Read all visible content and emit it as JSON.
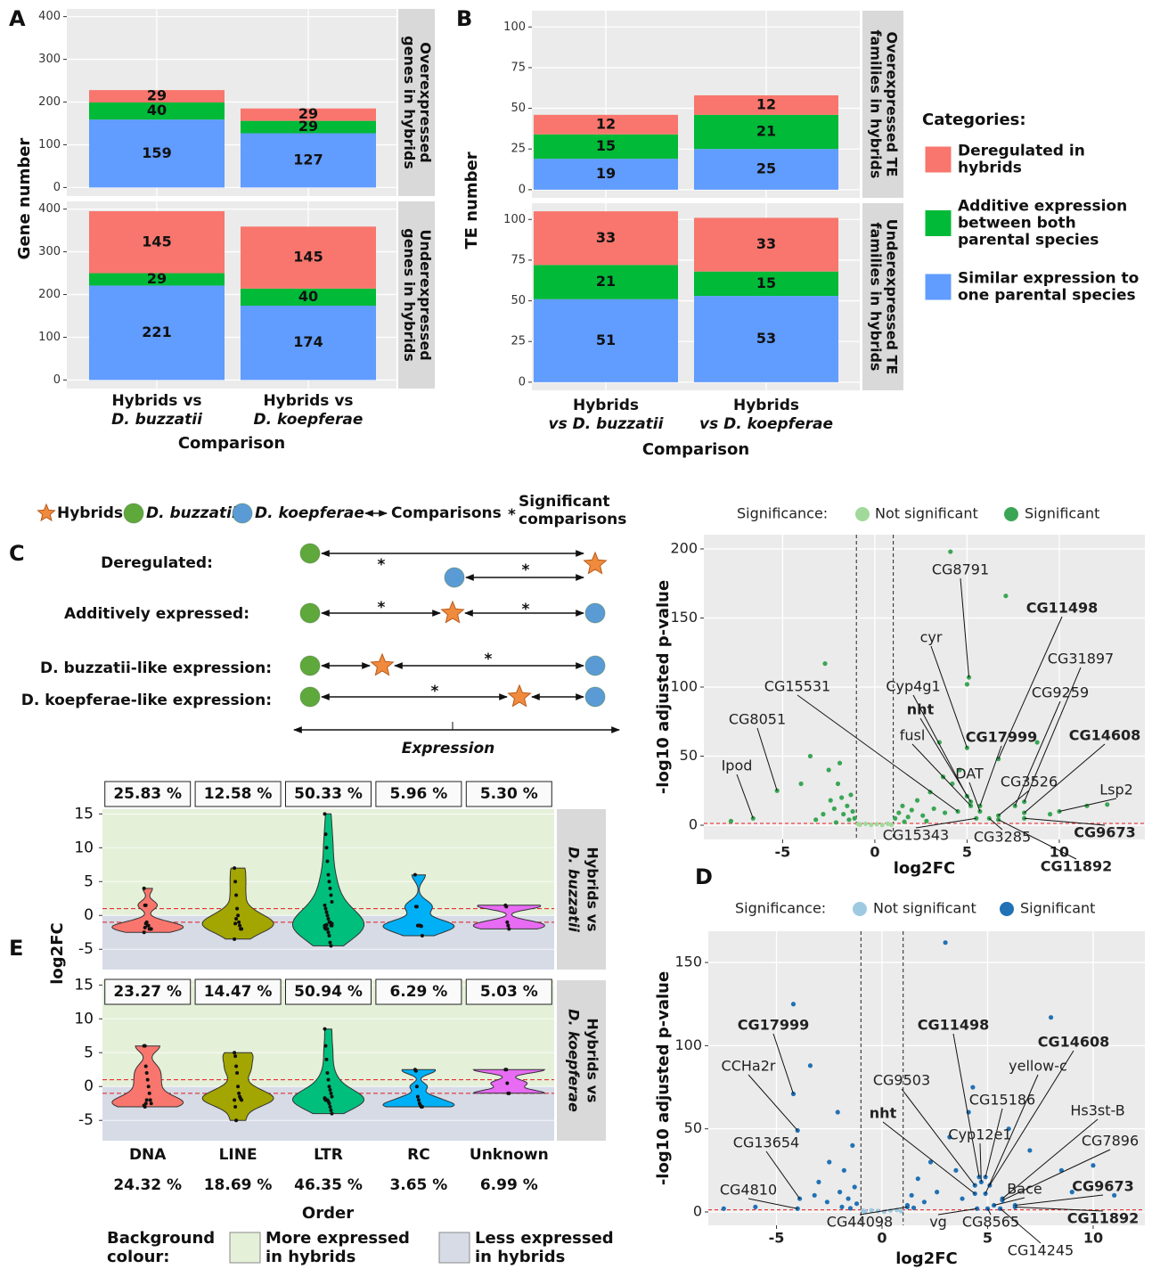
{
  "panel_labels": [
    "A",
    "B",
    "C",
    "D",
    "E"
  ],
  "chart_data": [
    {
      "type": "bar",
      "stacked": true,
      "grid": true,
      "x_label": "Comparison",
      "y_label": "Gene number",
      "categories": [
        [
          "Hybrids vs",
          "D. buzzatii"
        ],
        [
          "Hybrids vs",
          "D. koepferae"
        ]
      ],
      "ylim": [
        -20,
        418
      ],
      "yticks": [
        0,
        100,
        200,
        300,
        400
      ],
      "facets": [
        {
          "label": [
            "Overexpressed",
            "genes in hybrids"
          ],
          "series": [
            {
              "color": "#619cff",
              "values": [
                159,
                127
              ]
            },
            {
              "color": "#00ba38",
              "values": [
                40,
                29
              ]
            },
            {
              "color": "#f8766d",
              "values": [
                29,
                29
              ]
            }
          ]
        },
        {
          "label": [
            "Underexpressed",
            "genes in hybrids"
          ],
          "series": [
            {
              "color": "#619cff",
              "values": [
                221,
                174
              ]
            },
            {
              "color": "#00ba38",
              "values": [
                29,
                40
              ]
            },
            {
              "color": "#f8766d",
              "values": [
                145,
                145
              ]
            }
          ]
        }
      ]
    },
    {
      "type": "bar",
      "stacked": true,
      "grid": true,
      "x_label": "Comparison",
      "y_label": "TE number",
      "categories": [
        [
          "Hybrids",
          "vs D. buzzatii"
        ],
        [
          "Hybrids",
          "vs D. koepferae"
        ]
      ],
      "ylim": [
        -5,
        110
      ],
      "yticks": [
        0,
        25,
        50,
        75,
        100
      ],
      "legend_title": "Categories:",
      "facets": [
        {
          "label": [
            "Overexpressed TE",
            "families in hybrids"
          ],
          "series": [
            {
              "name": [
                "Similar expression to",
                "one parental species"
              ],
              "color": "#619cff",
              "values": [
                19,
                25
              ]
            },
            {
              "name": [
                "Additive expression",
                "between both",
                "parental species"
              ],
              "color": "#00ba38",
              "values": [
                15,
                21
              ]
            },
            {
              "name": [
                "Deregulated in",
                "hybrids"
              ],
              "color": "#f8766d",
              "values": [
                12,
                12
              ]
            }
          ]
        },
        {
          "label": [
            "Underexpressed TE",
            "families in hybrids"
          ],
          "series": [
            {
              "color": "#619cff",
              "values": [
                51,
                53
              ]
            },
            {
              "color": "#00ba38",
              "values": [
                21,
                15
              ]
            },
            {
              "color": "#f8766d",
              "values": [
                33,
                33
              ]
            }
          ]
        }
      ]
    },
    {
      "type": "scatter",
      "grid": true,
      "x_label": "log2FC",
      "y_label": "-log10 adjusted p-value",
      "legend_title": "Significance:",
      "xlim": [
        -9.27,
        14.64
      ],
      "ylim": [
        -10.3,
        210.3
      ],
      "xticks": [
        -5,
        0,
        5,
        10
      ],
      "yticks": [
        0,
        50,
        100,
        150,
        200
      ],
      "vlines": [
        -1,
        1
      ],
      "hline": 1.3,
      "series": [
        {
          "name": "Not significant",
          "color": "#a1d99b",
          "x": [
            -0.8,
            -0.5,
            -0.2,
            0.1,
            0.4,
            0.7,
            0.9,
            -0.9
          ],
          "y": [
            0.5,
            1,
            0.3,
            0.8,
            0.2,
            1.1,
            0.4,
            0.9
          ]
        },
        {
          "name": "Significant",
          "color": "#3aa655",
          "x": [
            -7.8,
            -6.6,
            -5.3,
            -4,
            -3.5,
            -2.7,
            -2.5,
            -2.2,
            -2,
            -1.8,
            -1.7,
            -1.5,
            -1.4,
            -1.3,
            -1.2,
            -1.1,
            -2.8,
            -3.2,
            -2.4,
            -1.9,
            1.1,
            1.3,
            1.5,
            1.8,
            2,
            2.3,
            2.6,
            3,
            3.2,
            3.5,
            3.8,
            4.1,
            4.2,
            4.5,
            5,
            5.1,
            5,
            5,
            5.2,
            5.2,
            5.5,
            5.7,
            5.7,
            6.2,
            6.7,
            6.7,
            6.7,
            7.1,
            7.6,
            8.1,
            8.1,
            8.1,
            8.8,
            9.5,
            10,
            11.5,
            12.6,
            4.6,
            3.7,
            2.8,
            1.6,
            -2.1
          ],
          "y": [
            3,
            5,
            25,
            30,
            50,
            117,
            40,
            12,
            30,
            20,
            8,
            14,
            4,
            22,
            10,
            5,
            8,
            4,
            18,
            45,
            5,
            9,
            14,
            6,
            11,
            18,
            7,
            24,
            12,
            60,
            9,
            198,
            30,
            10,
            102,
            107,
            56,
            21,
            17,
            14,
            5,
            14,
            10,
            5,
            48,
            7,
            4,
            166,
            14,
            17,
            9,
            5,
            60,
            8,
            10,
            14,
            15,
            40,
            35,
            3,
            2.5,
            2
          ]
        }
      ],
      "labels": [
        {
          "text": "Ipod",
          "x": -6.6,
          "y": 5,
          "bold": false
        },
        {
          "text": "CG8051",
          "x": -5.3,
          "y": 25,
          "bold": false
        },
        {
          "text": "CG15531",
          "x": 4.5,
          "y": 10,
          "bold": false
        },
        {
          "text": "CG8791",
          "x": 5.1,
          "y": 107,
          "bold": false
        },
        {
          "text": "cyr",
          "x": 5,
          "y": 56,
          "bold": false
        },
        {
          "text": "CG11498",
          "x": 6.7,
          "y": 48,
          "bold": true
        },
        {
          "text": "CG31897",
          "x": 8.1,
          "y": 17,
          "bold": false
        },
        {
          "text": "Cyp4g1",
          "x": 5,
          "y": 21,
          "bold": false
        },
        {
          "text": "CG9259",
          "x": 7.6,
          "y": 14,
          "bold": false
        },
        {
          "text": "nht",
          "x": 5.2,
          "y": 17,
          "bold": true
        },
        {
          "text": "fusl",
          "x": 5.2,
          "y": 14,
          "bold": false
        },
        {
          "text": "CG17999",
          "x": 5.7,
          "y": 14,
          "bold": true
        },
        {
          "text": "CG14608",
          "x": 8.1,
          "y": 9,
          "bold": true
        },
        {
          "text": "DAT",
          "x": 5.7,
          "y": 10,
          "bold": false
        },
        {
          "text": "CG3526",
          "x": 6.7,
          "y": 7,
          "bold": false
        },
        {
          "text": "Lsp2",
          "x": 10,
          "y": 10,
          "bold": false
        },
        {
          "text": "CG15343",
          "x": 5.5,
          "y": 5,
          "bold": false
        },
        {
          "text": "CG3285",
          "x": 6.2,
          "y": 5,
          "bold": false
        },
        {
          "text": "CG9673",
          "x": 8.1,
          "y": 5,
          "bold": true
        },
        {
          "text": "CG11892",
          "x": 6.7,
          "y": 4,
          "bold": true
        }
      ]
    },
    {
      "type": "scatter",
      "grid": true,
      "x_label": "log2FC",
      "y_label": "-log10 adjusted p-value",
      "legend_title": "Significance:",
      "xlim": [
        -8.23,
        12.45
      ],
      "ylim": [
        -8.04,
        168.8
      ],
      "xticks": [
        -5,
        0,
        5,
        10
      ],
      "yticks": [
        0,
        50,
        100,
        150
      ],
      "vlines": [
        -1,
        1
      ],
      "hline": 1.3,
      "series": [
        {
          "name": "Not significant",
          "color": "#9ecae1",
          "x": [
            -0.8,
            -0.5,
            -0.2,
            0.1,
            0.4,
            0.7,
            0.9,
            -0.9
          ],
          "y": [
            0.4,
            1,
            0.6,
            0.2,
            0.9,
            1.2,
            0.5,
            0.8
          ]
        },
        {
          "name": "Significant",
          "color": "#2171b5",
          "x": [
            -7.5,
            -6,
            -4.2,
            -4,
            -4.2,
            -3.4,
            -3.9,
            -4,
            -3,
            -2.5,
            -2.1,
            -2,
            -1.8,
            -1.6,
            -1.4,
            -1.3,
            -1.2,
            -2.6,
            -3.2,
            -1.9,
            1.2,
            1.4,
            1.7,
            2,
            2.3,
            2.6,
            3,
            3.2,
            3.5,
            3.8,
            4.1,
            4.3,
            4.4,
            4.4,
            4.5,
            4.6,
            4.9,
            4.9,
            5,
            5.1,
            5.3,
            5.6,
            5.7,
            5.7,
            6.3,
            6.3,
            7,
            8,
            8.5,
            9,
            10,
            11,
            6,
            1.5,
            -1.5,
            1.2,
            4.7
          ],
          "y": [
            2,
            3,
            71,
            49,
            125,
            88,
            8,
            2,
            18,
            30,
            60,
            12,
            25,
            8,
            40,
            15,
            5,
            6,
            10,
            3,
            4,
            10,
            20,
            6,
            30,
            12,
            162,
            45,
            25,
            8,
            60,
            75,
            16,
            11,
            2,
            21,
            11,
            21,
            2,
            16,
            4,
            2,
            7,
            8,
            3,
            4,
            37,
            117,
            25,
            12,
            28,
            10,
            50,
            2.5,
            2.2,
            3,
            18
          ]
        }
      ],
      "labels": [
        {
          "text": "CG17999",
          "x": -4.2,
          "y": 71,
          "bold": true
        },
        {
          "text": "CCHa2r",
          "x": -4,
          "y": 49,
          "bold": false
        },
        {
          "text": "CG13654",
          "x": -3.9,
          "y": 8,
          "bold": false
        },
        {
          "text": "CG4810",
          "x": -4,
          "y": 2,
          "bold": false
        },
        {
          "text": "CG44098",
          "x": 1.2,
          "y": 3,
          "bold": false
        },
        {
          "text": "vg",
          "x": 4.5,
          "y": 2,
          "bold": false
        },
        {
          "text": "CG8565",
          "x": 5,
          "y": 2,
          "bold": false
        },
        {
          "text": "CG14245",
          "x": 5.6,
          "y": 2,
          "bold": false
        },
        {
          "text": "CG11892",
          "x": 6.3,
          "y": 3,
          "bold": true
        },
        {
          "text": "CG9673",
          "x": 6.3,
          "y": 4,
          "bold": true
        },
        {
          "text": "Bace",
          "x": 5.3,
          "y": 4,
          "bold": false
        },
        {
          "text": "CG7896",
          "x": 5.7,
          "y": 7,
          "bold": false
        },
        {
          "text": "Hs3st-B",
          "x": 5.7,
          "y": 8,
          "bold": false
        },
        {
          "text": "yellow-c",
          "x": 4.9,
          "y": 11,
          "bold": false
        },
        {
          "text": "CG14608",
          "x": 5.1,
          "y": 16,
          "bold": true
        },
        {
          "text": "CG11498",
          "x": 4.6,
          "y": 21,
          "bold": true
        },
        {
          "text": "CG15186",
          "x": 4.9,
          "y": 21,
          "bold": false
        },
        {
          "text": "Cyp12e1",
          "x": 4.7,
          "y": 18,
          "bold": false
        },
        {
          "text": "CG9503",
          "x": 4.4,
          "y": 16,
          "bold": false
        },
        {
          "text": "nht",
          "x": 4.4,
          "y": 11,
          "bold": true
        }
      ]
    },
    {
      "type": "violin",
      "grid": true,
      "x_label": "Order",
      "y_label": "log2FC",
      "categories": [
        "DNA",
        "LINE",
        "LTR",
        "RC",
        "Unknown"
      ],
      "category_percentages": [
        "24.32 %",
        "18.69 %",
        "46.35 %",
        "3.65 %",
        "6.99 %"
      ],
      "colors": [
        "#f8766d",
        "#a3a500",
        "#00bf7d",
        "#00b0f6",
        "#e76bf3"
      ],
      "ylim": [
        -8,
        15.7
      ],
      "yticks": [
        -5,
        0,
        5,
        10,
        15
      ],
      "thresholds": [
        -1,
        1
      ],
      "legend_title": [
        "Background",
        "colour:"
      ],
      "background": [
        {
          "label": [
            "More expressed",
            "in hybrids"
          ],
          "color": "#e5f0d9"
        },
        {
          "label": [
            "Less expressed",
            "in hybrids"
          ],
          "color": "#d6dbe6"
        }
      ],
      "facets": [
        {
          "label": [
            "Hybrids vs",
            "D. buzzatii"
          ],
          "percentages": [
            "25.83 %",
            "12.58 %",
            "50.33 %",
            "5.96 %",
            "5.30 %"
          ],
          "values": [
            [
              4,
              1.5,
              1.5,
              -1,
              -1.5,
              -1.5,
              -2,
              -2,
              -2,
              -2.5,
              -1.8,
              -1.2
            ],
            [
              7,
              5,
              3,
              1,
              0,
              -1,
              -1.5,
              -2,
              -2,
              -3.5,
              -1.2,
              -0.5
            ],
            [
              15,
              12,
              10,
              8,
              6,
              5,
              4,
              3,
              2,
              1.5,
              1,
              0.5,
              0,
              -0.5,
              -1,
              -1,
              -1.5,
              -1.5,
              -1.5,
              -2,
              -2,
              -2,
              -2.5,
              -3,
              -4,
              -4.5,
              -1.2,
              -1.8,
              -1.6,
              -1.4
            ],
            [
              6,
              1.3,
              1.3,
              -1.5,
              -1.5,
              -1.5,
              -1.5,
              -1.6,
              -3
            ],
            [
              1.5,
              1.3,
              -1,
              -1.5,
              -2
            ]
          ]
        },
        {
          "label": [
            "Hybrids vs",
            "D. koepferae"
          ],
          "percentages": [
            "23.27 %",
            "14.47 %",
            "50.94 %",
            "6.29 %",
            "5.03 %"
          ],
          "values": [
            [
              6,
              6,
              3,
              2,
              1,
              0,
              -1,
              -2,
              -2.5,
              -2.8,
              -3,
              -2.5,
              -2
            ],
            [
              5,
              4.5,
              3,
              2,
              0,
              -1,
              -1.5,
              -1.8,
              -2,
              -2,
              -3,
              -5
            ],
            [
              8.5,
              6,
              4,
              2,
              1,
              0,
              -0.5,
              -1,
              -1.5,
              -1.8,
              -2,
              -2,
              -2,
              -2.2,
              -2.5,
              -3,
              -3.5,
              -4,
              -1.7,
              -1.9
            ],
            [
              2.5,
              2.3,
              0,
              -1.5,
              -2,
              -2.5,
              -2.8,
              -3,
              -3
            ],
            [
              2.5,
              2.5,
              0.5,
              -1,
              -1
            ]
          ]
        }
      ]
    }
  ],
  "diagram": {
    "legend": {
      "hybrids": "Hybrids",
      "buzzatii": "D. buzzatii",
      "koepferae": "D. koepferae",
      "comparisons": "Comparisons",
      "significance_mark": "*",
      "significant": [
        "Significant",
        "comparisons"
      ]
    },
    "rows": [
      "Deregulated:",
      "Additively expressed:",
      "D. buzzatii-like expression:",
      "D. koepferae-like expression:"
    ],
    "axis_label": "Expression"
  }
}
